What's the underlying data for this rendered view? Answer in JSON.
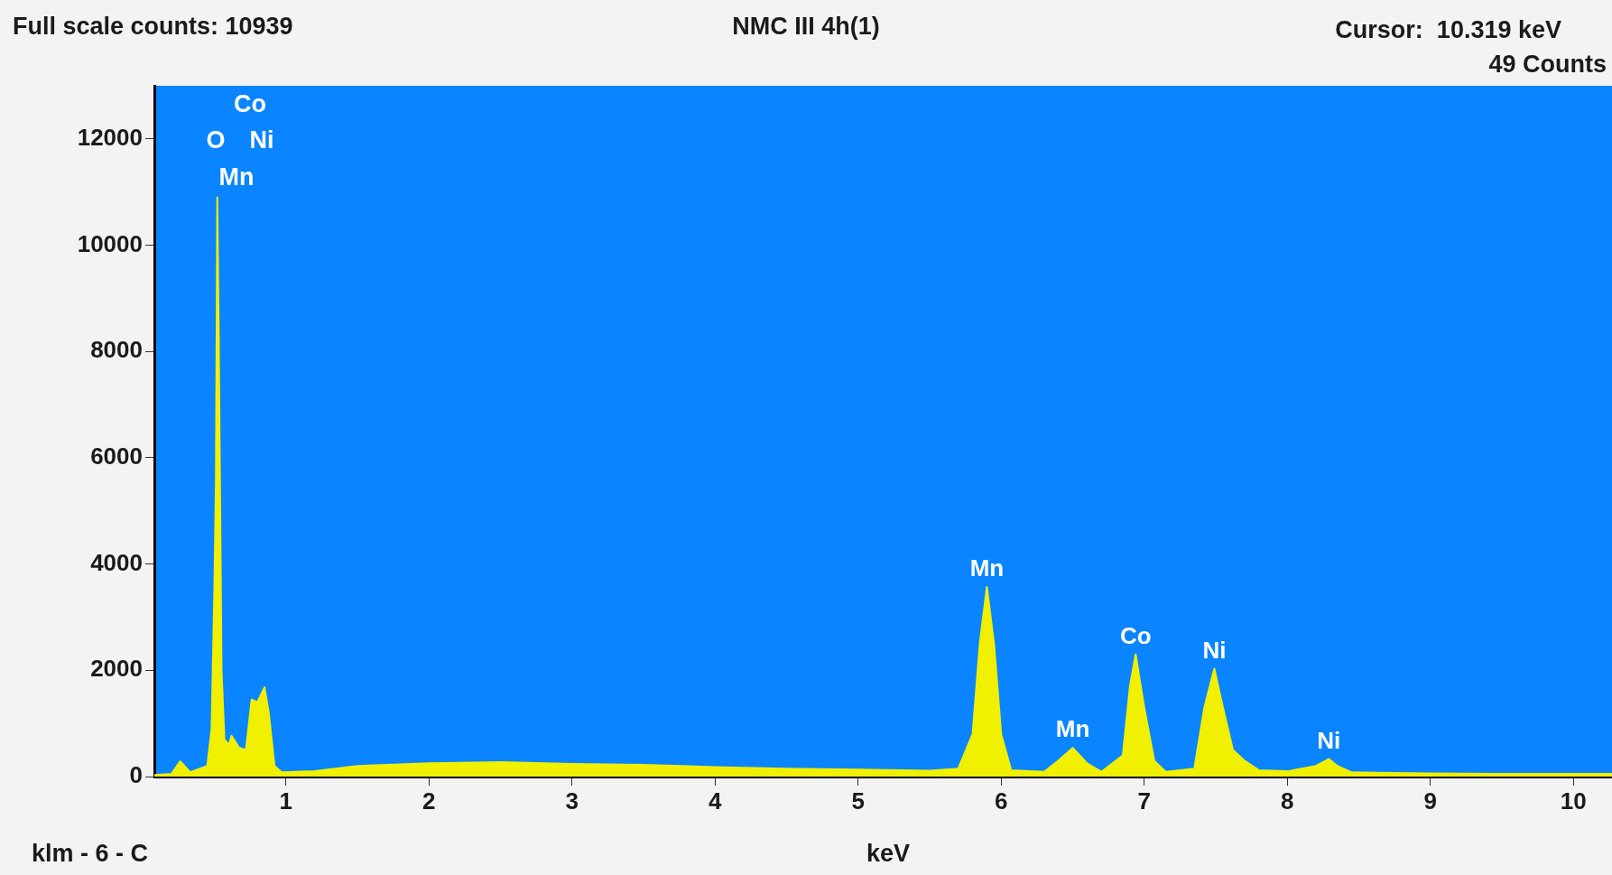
{
  "chart_data": {
    "type": "area",
    "title": "NMC III 4h(1)",
    "xlabel": "keV",
    "x": [
      0.08,
      0.2,
      0.26,
      0.33,
      0.45,
      0.48,
      0.5,
      0.51,
      0.52,
      0.53,
      0.55,
      0.57,
      0.6,
      0.62,
      0.67,
      0.72,
      0.76,
      0.8,
      0.85,
      0.88,
      0.92,
      0.97,
      1.2,
      1.5,
      2,
      2.5,
      3,
      3.5,
      4,
      4.5,
      5,
      5.5,
      5.7,
      5.8,
      5.85,
      5.9,
      5.95,
      6,
      6.07,
      6.3,
      6.4,
      6.5,
      6.6,
      6.7,
      6.85,
      6.9,
      6.94,
      7,
      7.07,
      7.15,
      7.35,
      7.42,
      7.49,
      7.55,
      7.62,
      7.7,
      7.8,
      8,
      8.2,
      8.29,
      8.35,
      8.45,
      9,
      9.5,
      10,
      10.27
    ],
    "series": [
      {
        "color": "#f0f000",
        "values": [
          30,
          50,
          290,
          80,
          200,
          900,
          3600,
          5500,
          10900,
          8350,
          2000,
          700,
          600,
          770,
          550,
          500,
          1450,
          1400,
          1680,
          1200,
          200,
          80,
          100,
          200,
          250,
          270,
          240,
          220,
          180,
          150,
          130,
          110,
          150,
          800,
          2500,
          3570,
          2500,
          800,
          120,
          90,
          300,
          540,
          250,
          90,
          400,
          1700,
          2300,
          1300,
          300,
          90,
          150,
          1300,
          2030,
          1300,
          500,
          300,
          120,
          100,
          200,
          330,
          200,
          80,
          60,
          50,
          50,
          50
        ]
      }
    ],
    "xlim": [
      0.08,
      10.27
    ],
    "xticks": [
      1,
      2,
      3,
      4,
      5,
      6,
      7,
      8,
      9,
      10
    ],
    "ylim": [
      0,
      13000
    ],
    "yticks": [
      0,
      2000,
      4000,
      6000,
      8000,
      10000,
      12000
    ],
    "grid": false,
    "legend": false,
    "annotations": [
      "Full scale counts: 10939",
      "Cursor:  10.319 keV",
      "49 Counts",
      "klm - 6 - C",
      "Co",
      "O",
      "Ni",
      "Mn",
      {
        "text": "Mn",
        "x": 5.9,
        "y": 3570
      },
      {
        "text": "Mn",
        "x": 6.5,
        "y": 540
      },
      {
        "text": "Co",
        "x": 6.94,
        "y": 2300
      },
      {
        "text": "Ni",
        "x": 7.49,
        "y": 2030
      },
      {
        "text": "Ni",
        "x": 8.29,
        "y": 330
      }
    ]
  }
}
